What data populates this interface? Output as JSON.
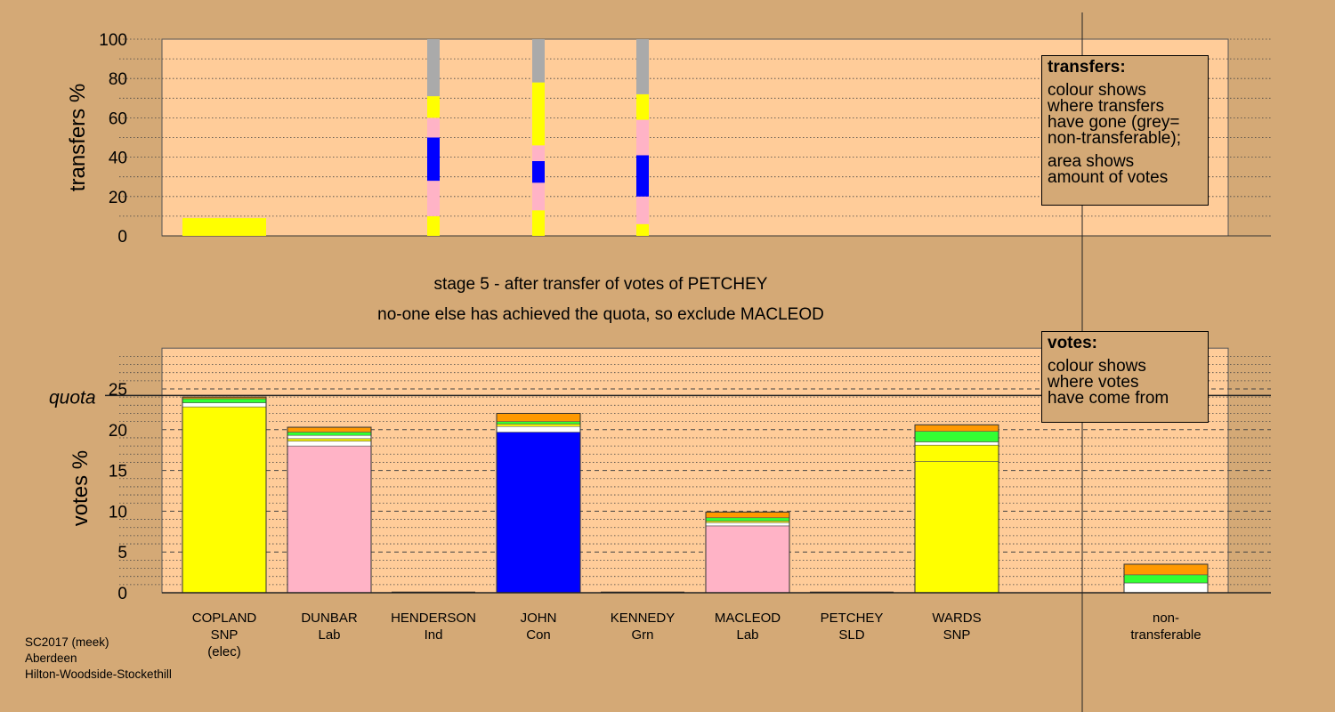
{
  "chart_data": [
    {
      "type": "bar",
      "panel": "transfers",
      "ylabel": "transfers %",
      "ylim": [
        0,
        100
      ],
      "yticks": [
        0,
        20,
        40,
        60,
        80,
        100
      ],
      "bars": [
        {
          "candidate": "COPLAND",
          "width": "wide",
          "segments": [
            {
              "color": "yellow",
              "from": 0,
              "to": 9
            }
          ]
        },
        {
          "candidate": "HENDERSON",
          "width": "narrow",
          "segments": [
            {
              "color": "yellow",
              "from": 0,
              "to": 10
            },
            {
              "color": "pink",
              "from": 10,
              "to": 28
            },
            {
              "color": "blue",
              "from": 28,
              "to": 50
            },
            {
              "color": "pink",
              "from": 50,
              "to": 60
            },
            {
              "color": "yellow",
              "from": 60,
              "to": 71
            },
            {
              "color": "grey",
              "from": 71,
              "to": 100
            }
          ]
        },
        {
          "candidate": "JOHN",
          "width": "narrow",
          "segments": [
            {
              "color": "yellow",
              "from": 0,
              "to": 13
            },
            {
              "color": "pink",
              "from": 13,
              "to": 27
            },
            {
              "color": "blue",
              "from": 27,
              "to": 38
            },
            {
              "color": "pink",
              "from": 38,
              "to": 46
            },
            {
              "color": "yellow",
              "from": 46,
              "to": 78
            },
            {
              "color": "grey",
              "from": 78,
              "to": 100
            }
          ]
        },
        {
          "candidate": "KENNEDY",
          "width": "narrow",
          "segments": [
            {
              "color": "yellow",
              "from": 0,
              "to": 6
            },
            {
              "color": "pink",
              "from": 6,
              "to": 20
            },
            {
              "color": "blue",
              "from": 20,
              "to": 41
            },
            {
              "color": "pink",
              "from": 41,
              "to": 59
            },
            {
              "color": "yellow",
              "from": 59,
              "to": 72
            },
            {
              "color": "grey",
              "from": 72,
              "to": 100
            }
          ]
        }
      ]
    },
    {
      "type": "bar",
      "panel": "votes",
      "ylabel": "votes %",
      "ylim": [
        0,
        30
      ],
      "yticks": [
        0,
        5,
        10,
        15,
        20,
        25
      ],
      "quota": 24.2,
      "quota_label": "quota",
      "categories": [
        "COPLAND",
        "DUNBAR",
        "HENDERSON",
        "JOHN",
        "KENNEDY",
        "MACLEOD",
        "PETCHEY",
        "WARDS",
        "non-transferable"
      ],
      "bars": [
        {
          "candidate": "COPLAND",
          "segments": [
            {
              "color": "yellow",
              "from": 0,
              "to": 22.8
            },
            {
              "color": "white",
              "from": 22.8,
              "to": 23.3
            },
            {
              "color": "green",
              "from": 23.3,
              "to": 23.8
            },
            {
              "color": "orange",
              "from": 23.8,
              "to": 24.0
            }
          ]
        },
        {
          "candidate": "DUNBAR",
          "segments": [
            {
              "color": "pink",
              "from": 0,
              "to": 18.0
            },
            {
              "color": "white",
              "from": 18.0,
              "to": 18.6
            },
            {
              "color": "yellow",
              "from": 18.6,
              "to": 18.9
            },
            {
              "color": "white",
              "from": 18.9,
              "to": 19.3
            },
            {
              "color": "green",
              "from": 19.3,
              "to": 19.7
            },
            {
              "color": "orange",
              "from": 19.7,
              "to": 20.3
            }
          ]
        },
        {
          "candidate": "HENDERSON",
          "segments": []
        },
        {
          "candidate": "JOHN",
          "segments": [
            {
              "color": "blue",
              "from": 0,
              "to": 19.7
            },
            {
              "color": "white",
              "from": 19.7,
              "to": 20.4
            },
            {
              "color": "yellow",
              "from": 20.4,
              "to": 20.7
            },
            {
              "color": "green",
              "from": 20.7,
              "to": 21.0
            },
            {
              "color": "orange",
              "from": 21.0,
              "to": 22.0
            }
          ]
        },
        {
          "candidate": "KENNEDY",
          "segments": []
        },
        {
          "candidate": "MACLEOD",
          "segments": [
            {
              "color": "pink",
              "from": 0,
              "to": 8.2
            },
            {
              "color": "white",
              "from": 8.2,
              "to": 8.6
            },
            {
              "color": "yellow",
              "from": 8.6,
              "to": 8.8
            },
            {
              "color": "green",
              "from": 8.8,
              "to": 9.2
            },
            {
              "color": "orange",
              "from": 9.2,
              "to": 9.9
            }
          ]
        },
        {
          "candidate": "PETCHEY",
          "segments": []
        },
        {
          "candidate": "WARDS",
          "segments": [
            {
              "color": "yellow",
              "from": 0,
              "to": 16.1
            },
            {
              "color": "yellow",
              "from": 16.1,
              "to": 18.1
            },
            {
              "color": "white",
              "from": 18.1,
              "to": 18.5
            },
            {
              "color": "green",
              "from": 18.5,
              "to": 19.8
            },
            {
              "color": "orange",
              "from": 19.8,
              "to": 20.6
            }
          ]
        },
        {
          "candidate": "non-transferable",
          "segments": [
            {
              "color": "white",
              "from": 0,
              "to": 1.2
            },
            {
              "color": "green",
              "from": 1.2,
              "to": 2.2
            },
            {
              "color": "orange",
              "from": 2.2,
              "to": 3.5
            }
          ]
        }
      ]
    }
  ],
  "x_labels": [
    {
      "line1": "COPLAND",
      "line2": "SNP",
      "line3": "(elec)"
    },
    {
      "line1": "DUNBAR",
      "line2": "Lab",
      "line3": ""
    },
    {
      "line1": "HENDERSON",
      "line2": "Ind",
      "line3": ""
    },
    {
      "line1": "JOHN",
      "line2": "Con",
      "line3": ""
    },
    {
      "line1": "KENNEDY",
      "line2": "Grn",
      "line3": ""
    },
    {
      "line1": "MACLEOD",
      "line2": "Lab",
      "line3": ""
    },
    {
      "line1": "PETCHEY",
      "line2": "SLD",
      "line3": ""
    },
    {
      "line1": "WARDS",
      "line2": "SNP",
      "line3": ""
    },
    {
      "line1": "non-",
      "line2": "transferable",
      "line3": ""
    }
  ],
  "stage_text": {
    "line1": "stage 5 - after transfer of votes of PETCHEY",
    "line2": "no-one else has achieved the quota, so exclude MACLEOD"
  },
  "legend_transfers": {
    "title": "transfers:",
    "lines": [
      "colour shows",
      "where transfers",
      "have gone (grey=",
      "non-transferable);"
    ],
    "lines2": [
      "area shows",
      "amount of votes"
    ]
  },
  "legend_votes": {
    "title": "votes:",
    "lines": [
      "colour shows",
      "where votes",
      "have come from"
    ]
  },
  "footer": {
    "line1": "SC2017 (meek)",
    "line2": "Aberdeen",
    "line3": "Hilton-Woodside-Stockethill"
  },
  "colors": {
    "background": "#d4a976",
    "plot_bg": "#ffcc99",
    "yellow": "#ffff00",
    "pink": "#ffb3c6",
    "blue": "#0000ff",
    "grey": "#aaaaaa",
    "green": "#33ff33",
    "orange": "#ff9900",
    "white": "#ffffff"
  }
}
